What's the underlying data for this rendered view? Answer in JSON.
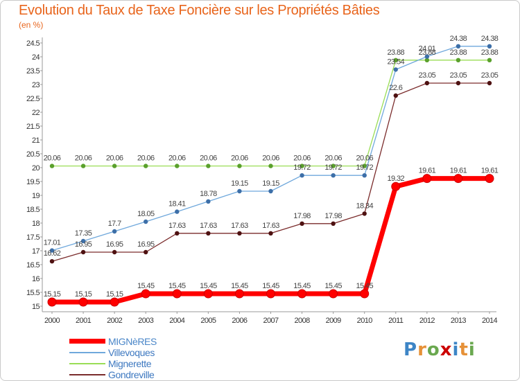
{
  "chart_data": {
    "type": "line",
    "title": "Evolution du Taux de Taxe Foncière sur les Propriétés Bâties",
    "ylabel": "(en %)",
    "xlabel": "",
    "ylim": [
      15,
      24.5
    ],
    "ytick_step": 0.5,
    "grid": false,
    "legend_position": "bottom-left",
    "categories": [
      "2000",
      "2001",
      "2002",
      "2003",
      "2004",
      "2005",
      "2006",
      "2007",
      "2008",
      "2009",
      "2010",
      "2011",
      "2012",
      "2013",
      "2014"
    ],
    "series": [
      {
        "name": "MIGNèRES",
        "color": "#ff0000",
        "values": [
          15.15,
          15.15,
          15.15,
          15.45,
          15.45,
          15.45,
          15.45,
          15.45,
          15.45,
          15.45,
          15.45,
          19.32,
          19.61,
          19.61,
          19.61
        ]
      },
      {
        "name": "Villevoques",
        "color": "#6fa8dc",
        "values": [
          17.01,
          17.35,
          17.7,
          18.05,
          18.41,
          18.78,
          19.15,
          19.15,
          19.72,
          19.72,
          19.72,
          23.54,
          24.01,
          24.38,
          24.38
        ]
      },
      {
        "name": "Mignerette",
        "color": "#99dd55",
        "values": [
          20.06,
          20.06,
          20.06,
          20.06,
          20.06,
          20.06,
          20.06,
          20.06,
          20.06,
          20.06,
          20.06,
          23.88,
          23.88,
          23.88,
          23.88
        ]
      },
      {
        "name": "Gondreville",
        "color": "#7a2b2b",
        "values": [
          16.62,
          16.95,
          16.95,
          16.95,
          17.63,
          17.63,
          17.63,
          17.63,
          17.98,
          17.98,
          18.34,
          22.6,
          23.05,
          23.05,
          23.05
        ]
      }
    ]
  },
  "logo": {
    "letters": [
      "P",
      "r",
      "o",
      "x",
      "i",
      "t",
      "i"
    ],
    "colors": [
      "#3d85c6",
      "#e69138",
      "#6aa84f",
      "#cc0000",
      "#3d85c6",
      "#e69138",
      "#6aa84f"
    ]
  }
}
